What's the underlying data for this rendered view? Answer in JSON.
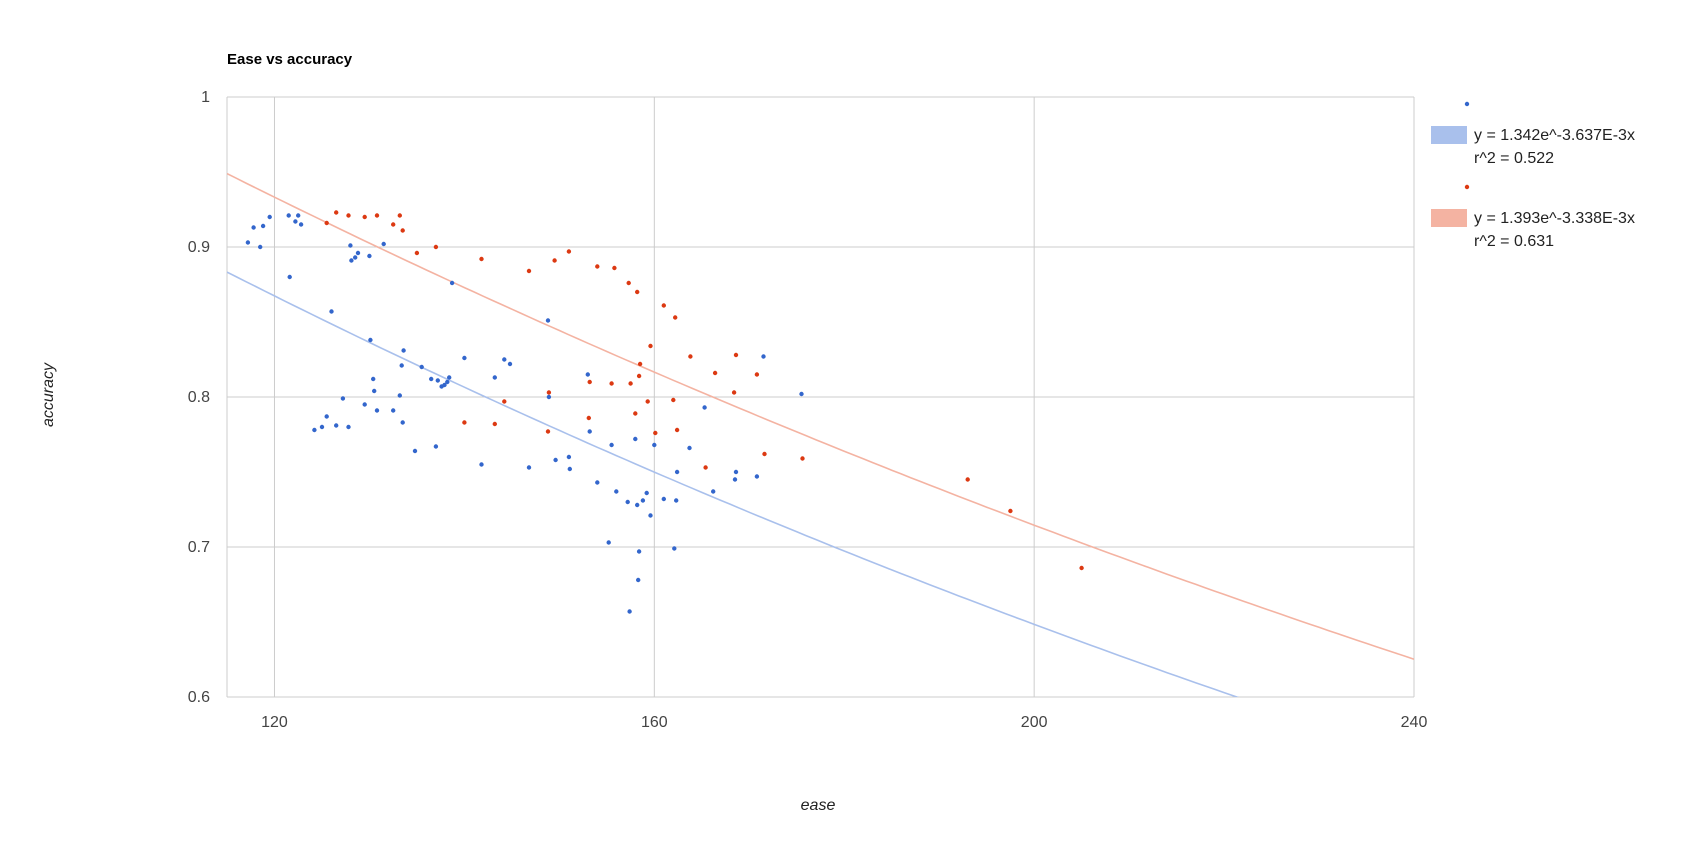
{
  "chart_data": {
    "type": "scatter",
    "title": "Ease vs accuracy",
    "xlabel": "ease",
    "ylabel": "accuracy",
    "xlim": [
      115,
      240
    ],
    "ylim": [
      0.6,
      1.0
    ],
    "x_ticks": [
      120,
      160,
      200,
      240
    ],
    "y_ticks": [
      0.6,
      0.7,
      0.8,
      0.9,
      1.0
    ],
    "x_tick_labels": [
      "120",
      "160",
      "200",
      "240"
    ],
    "y_tick_labels": [
      "0.6",
      "0.7",
      "0.8",
      "0.9",
      "1"
    ],
    "grid": true,
    "legend_position": "right",
    "series": [
      {
        "color": "#3366cc",
        "trend_color": "#a9c0ec",
        "trendline": {
          "type": "exponential",
          "a": 1.342,
          "b": -0.003637,
          "label_line1": "y = 1.342e^-3.637E-3x",
          "label_line2": "r^2 = 0.522"
        },
        "points": [
          [
            117.2,
            0.903
          ],
          [
            117.8,
            0.913
          ],
          [
            118.5,
            0.9
          ],
          [
            118.8,
            0.914
          ],
          [
            119.5,
            0.92
          ],
          [
            121.5,
            0.921
          ],
          [
            121.6,
            0.88
          ],
          [
            122.2,
            0.917
          ],
          [
            122.5,
            0.921
          ],
          [
            122.8,
            0.915
          ],
          [
            124.2,
            0.778
          ],
          [
            125.0,
            0.78
          ],
          [
            125.5,
            0.787
          ],
          [
            126.0,
            0.857
          ],
          [
            126.5,
            0.781
          ],
          [
            127.2,
            0.799
          ],
          [
            127.8,
            0.78
          ],
          [
            128.0,
            0.901
          ],
          [
            128.1,
            0.891
          ],
          [
            128.5,
            0.893
          ],
          [
            128.8,
            0.896
          ],
          [
            129.5,
            0.795
          ],
          [
            130.0,
            0.894
          ],
          [
            130.1,
            0.838
          ],
          [
            130.4,
            0.812
          ],
          [
            130.5,
            0.804
          ],
          [
            130.8,
            0.791
          ],
          [
            131.5,
            0.902
          ],
          [
            132.5,
            0.791
          ],
          [
            133.2,
            0.801
          ],
          [
            133.4,
            0.821
          ],
          [
            133.5,
            0.783
          ],
          [
            133.6,
            0.831
          ],
          [
            134.8,
            0.764
          ],
          [
            135.5,
            0.82
          ],
          [
            136.5,
            0.812
          ],
          [
            137.0,
            0.767
          ],
          [
            137.2,
            0.811
          ],
          [
            137.6,
            0.807
          ],
          [
            137.9,
            0.808
          ],
          [
            138.2,
            0.81
          ],
          [
            138.4,
            0.813
          ],
          [
            138.7,
            0.876
          ],
          [
            140.0,
            0.826
          ],
          [
            141.8,
            0.755
          ],
          [
            143.2,
            0.813
          ],
          [
            144.2,
            0.825
          ],
          [
            144.8,
            0.822
          ],
          [
            146.8,
            0.753
          ],
          [
            148.8,
            0.851
          ],
          [
            148.9,
            0.8
          ],
          [
            149.6,
            0.758
          ],
          [
            151.0,
            0.76
          ],
          [
            151.1,
            0.752
          ],
          [
            153.0,
            0.815
          ],
          [
            153.2,
            0.777
          ],
          [
            154.0,
            0.743
          ],
          [
            155.2,
            0.703
          ],
          [
            155.5,
            0.768
          ],
          [
            156.0,
            0.737
          ],
          [
            157.2,
            0.73
          ],
          [
            157.4,
            0.657
          ],
          [
            158.0,
            0.772
          ],
          [
            158.2,
            0.728
          ],
          [
            158.3,
            0.678
          ],
          [
            158.4,
            0.697
          ],
          [
            158.8,
            0.731
          ],
          [
            159.2,
            0.736
          ],
          [
            159.6,
            0.721
          ],
          [
            160.0,
            0.768
          ],
          [
            161.0,
            0.732
          ],
          [
            162.1,
            0.699
          ],
          [
            162.3,
            0.731
          ],
          [
            162.4,
            0.75
          ],
          [
            163.7,
            0.766
          ],
          [
            165.3,
            0.793
          ],
          [
            166.2,
            0.737
          ],
          [
            168.5,
            0.745
          ],
          [
            168.6,
            0.75
          ],
          [
            170.8,
            0.747
          ],
          [
            171.5,
            0.827
          ],
          [
            175.5,
            0.802
          ]
        ]
      },
      {
        "color": "#dc3912",
        "trend_color": "#f4b3a2",
        "trendline": {
          "type": "exponential",
          "a": 1.393,
          "b": -0.003338,
          "label_line1": "y = 1.393e^-3.338E-3x",
          "label_line2": "r^2 = 0.631"
        },
        "points": [
          [
            125.5,
            0.916
          ],
          [
            126.5,
            0.923
          ],
          [
            127.8,
            0.921
          ],
          [
            129.5,
            0.92
          ],
          [
            130.8,
            0.921
          ],
          [
            132.5,
            0.915
          ],
          [
            133.2,
            0.921
          ],
          [
            133.5,
            0.911
          ],
          [
            135.0,
            0.896
          ],
          [
            137.0,
            0.9
          ],
          [
            140.0,
            0.783
          ],
          [
            141.8,
            0.892
          ],
          [
            143.2,
            0.782
          ],
          [
            144.2,
            0.797
          ],
          [
            146.8,
            0.884
          ],
          [
            148.8,
            0.777
          ],
          [
            148.9,
            0.803
          ],
          [
            149.5,
            0.891
          ],
          [
            151.0,
            0.897
          ],
          [
            153.1,
            0.786
          ],
          [
            153.2,
            0.81
          ],
          [
            154.0,
            0.887
          ],
          [
            155.5,
            0.809
          ],
          [
            155.8,
            0.886
          ],
          [
            157.3,
            0.876
          ],
          [
            157.5,
            0.809
          ],
          [
            158.0,
            0.789
          ],
          [
            158.2,
            0.87
          ],
          [
            158.4,
            0.814
          ],
          [
            158.5,
            0.822
          ],
          [
            159.3,
            0.797
          ],
          [
            159.6,
            0.834
          ],
          [
            160.1,
            0.776
          ],
          [
            161.0,
            0.861
          ],
          [
            162.0,
            0.798
          ],
          [
            162.2,
            0.853
          ],
          [
            162.4,
            0.778
          ],
          [
            163.8,
            0.827
          ],
          [
            165.4,
            0.753
          ],
          [
            166.4,
            0.816
          ],
          [
            168.4,
            0.803
          ],
          [
            168.6,
            0.828
          ],
          [
            170.8,
            0.815
          ],
          [
            171.6,
            0.762
          ],
          [
            175.6,
            0.759
          ],
          [
            193.0,
            0.745
          ],
          [
            197.5,
            0.724
          ],
          [
            205.0,
            0.686
          ]
        ]
      }
    ]
  }
}
